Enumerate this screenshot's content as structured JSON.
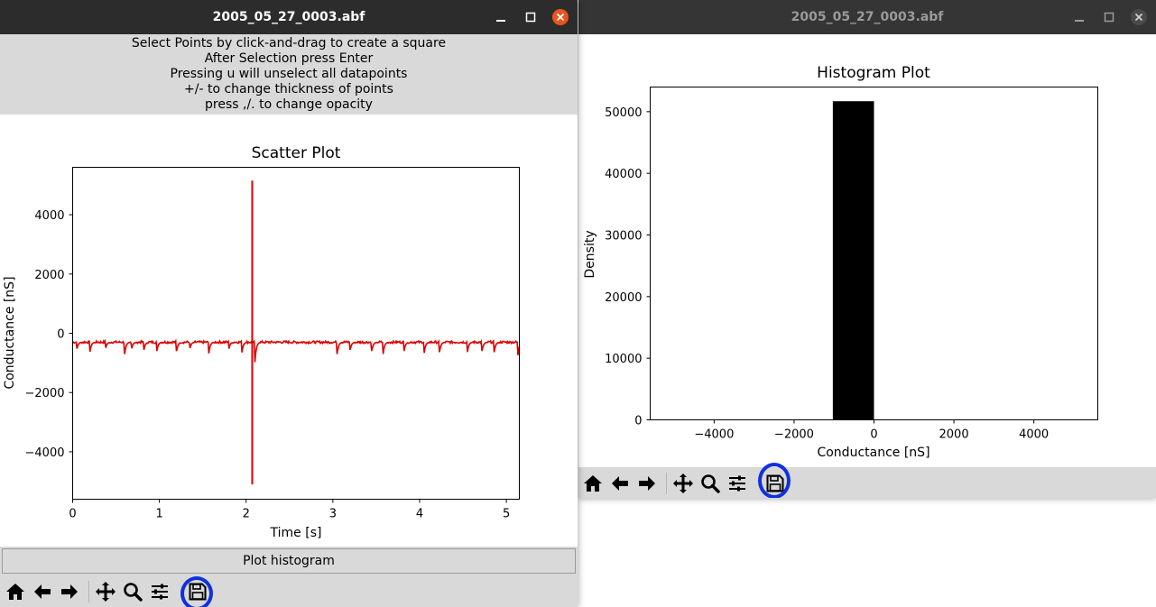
{
  "left_window": {
    "title": "2005_05_27_0003.abf",
    "instructions": [
      "Select Points by click-and-drag to create a square",
      "After Selection press Enter",
      "Pressing u will unselect all datapoints",
      "+/- to change thickness of points",
      "press ,/. to change opacity"
    ],
    "plot_histogram_label": "Plot histogram",
    "toolbar": [
      "home-icon",
      "back-icon",
      "forward-icon",
      "pan-icon",
      "zoom-icon",
      "configure-icon",
      "save-icon"
    ]
  },
  "right_window": {
    "title": "2005_05_27_0003.abf",
    "toolbar": [
      "home-icon",
      "back-icon",
      "forward-icon",
      "pan-icon",
      "zoom-icon",
      "configure-icon",
      "save-icon"
    ]
  },
  "colors": {
    "scatter_trace": "#dd0000",
    "histogram_bar": "#000000",
    "close_button_active": "#e95420",
    "highlight_circle": "#1030e0"
  },
  "chart_data": [
    {
      "type": "line",
      "title": "Scatter Plot",
      "xlabel": "Time [s]",
      "ylabel": "Conductance [nS]",
      "xlim": [
        0,
        5.15
      ],
      "ylim": [
        -5600,
        5600
      ],
      "xticks": [
        "0",
        "1",
        "2",
        "3",
        "4",
        "5"
      ],
      "xtick_values": [
        0,
        1,
        2,
        3,
        4,
        5
      ],
      "yticks": [
        "−4000",
        "−2000",
        "0",
        "2000",
        "4000"
      ],
      "ytick_values": [
        -4000,
        -2000,
        0,
        2000,
        4000
      ],
      "baseline": -300,
      "spike": {
        "x": 2.07,
        "ymin": -5100,
        "ymax": 5150
      },
      "dips": [
        {
          "x": 0.05,
          "y": -520
        },
        {
          "x": 0.2,
          "y": -620
        },
        {
          "x": 0.38,
          "y": -520
        },
        {
          "x": 0.6,
          "y": -700
        },
        {
          "x": 0.68,
          "y": -520
        },
        {
          "x": 0.82,
          "y": -600
        },
        {
          "x": 0.97,
          "y": -640
        },
        {
          "x": 1.2,
          "y": -600
        },
        {
          "x": 1.35,
          "y": -560
        },
        {
          "x": 1.57,
          "y": -680
        },
        {
          "x": 1.8,
          "y": -560
        },
        {
          "x": 1.95,
          "y": -700
        },
        {
          "x": 2.1,
          "y": -1050
        },
        {
          "x": 3.05,
          "y": -700
        },
        {
          "x": 3.2,
          "y": -560
        },
        {
          "x": 3.45,
          "y": -600
        },
        {
          "x": 3.58,
          "y": -700
        },
        {
          "x": 3.82,
          "y": -620
        },
        {
          "x": 4.05,
          "y": -760
        },
        {
          "x": 4.23,
          "y": -640
        },
        {
          "x": 4.55,
          "y": -680
        },
        {
          "x": 4.72,
          "y": -600
        },
        {
          "x": 4.86,
          "y": -640
        },
        {
          "x": 5.13,
          "y": -850
        }
      ]
    },
    {
      "type": "bar",
      "title": "Histogram Plot",
      "xlabel": "Conductance [nS]",
      "ylabel": "Density",
      "xlim": [
        -5600,
        5600
      ],
      "ylim": [
        0,
        54000
      ],
      "xticks": [
        "−4000",
        "−2000",
        "0",
        "2000",
        "4000"
      ],
      "xtick_values": [
        -4000,
        -2000,
        0,
        2000,
        4000
      ],
      "yticks": [
        "0",
        "10000",
        "20000",
        "30000",
        "40000",
        "50000"
      ],
      "ytick_values": [
        0,
        10000,
        20000,
        30000,
        40000,
        50000
      ],
      "bins": [
        {
          "x0": -1030,
          "x1": 0,
          "value": 51700
        }
      ]
    }
  ]
}
